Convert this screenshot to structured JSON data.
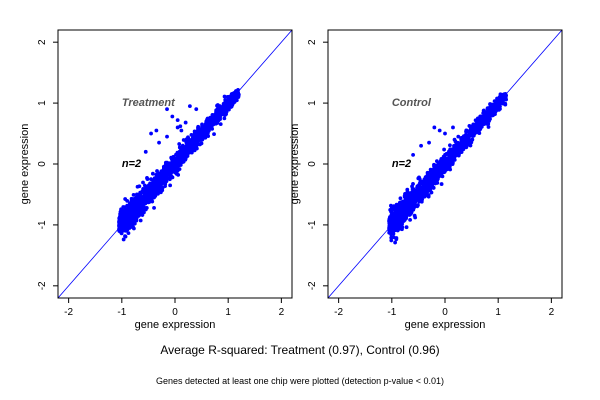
{
  "chart_data": [
    {
      "type": "scatter",
      "panel": "Treatment",
      "annotation": "Treatment",
      "n_label": "n=2",
      "xlabel": "gene expression",
      "ylabel": "gene expression",
      "xlim": [
        -2.2,
        2.2
      ],
      "ylim": [
        -2.2,
        2.2
      ],
      "xticks": [
        -2,
        -1,
        0,
        1,
        2
      ],
      "yticks": [
        -2,
        -1,
        0,
        1,
        2
      ],
      "grid": false,
      "reference_line": "y = x",
      "point_color": "#0000ff",
      "line_color": "#0000ff",
      "cloud": {
        "x_range": [
          -1.05,
          1.2
        ],
        "y_range": [
          -1.1,
          1.2
        ],
        "spread": 0.09
      },
      "outliers": [
        {
          "x": -0.15,
          "y": 0.9
        },
        {
          "x": -0.05,
          "y": 0.78
        },
        {
          "x": 0.05,
          "y": 0.72
        },
        {
          "x": 0.1,
          "y": 0.62
        },
        {
          "x": 0.12,
          "y": 0.55
        },
        {
          "x": 0.2,
          "y": 0.68
        },
        {
          "x": 0.28,
          "y": 0.95
        },
        {
          "x": 0.4,
          "y": 0.9
        },
        {
          "x": -0.35,
          "y": 0.55
        },
        {
          "x": -0.45,
          "y": 0.5
        },
        {
          "x": -0.3,
          "y": 0.35
        },
        {
          "x": -0.55,
          "y": 0.2
        },
        {
          "x": -0.15,
          "y": 0.45
        },
        {
          "x": 0.05,
          "y": 0.6
        }
      ]
    },
    {
      "type": "scatter",
      "panel": "Control",
      "annotation": "Control",
      "n_label": "n=2",
      "xlabel": "gene expression",
      "ylabel": "gene expression",
      "xlim": [
        -2.2,
        2.2
      ],
      "ylim": [
        -2.2,
        2.2
      ],
      "xticks": [
        -2,
        -1,
        0,
        1,
        2
      ],
      "yticks": [
        -2,
        -1,
        0,
        1,
        2
      ],
      "grid": false,
      "reference_line": "y = x",
      "point_color": "#0000ff",
      "line_color": "#0000ff",
      "cloud": {
        "x_range": [
          -1.05,
          1.15
        ],
        "y_range": [
          -1.1,
          1.15
        ],
        "spread": 0.09
      },
      "outliers": [
        {
          "x": -0.2,
          "y": 0.6
        },
        {
          "x": -0.1,
          "y": 0.55
        },
        {
          "x": 0.0,
          "y": 0.5
        },
        {
          "x": 0.15,
          "y": 0.6
        },
        {
          "x": -0.3,
          "y": 0.35
        },
        {
          "x": -0.45,
          "y": 0.3
        },
        {
          "x": -0.6,
          "y": 0.15
        },
        {
          "x": 0.25,
          "y": 0.45
        },
        {
          "x": 0.4,
          "y": 0.55
        }
      ]
    }
  ],
  "captions": {
    "summary": "Average R-squared: Treatment (0.97), Control (0.96)",
    "footnote": "Genes detected at least one chip were plotted (detection p-value < 0.01)"
  }
}
